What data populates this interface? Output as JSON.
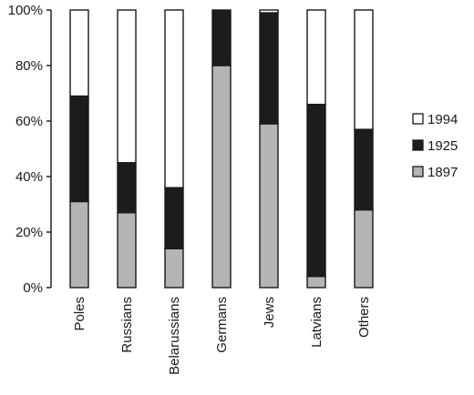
{
  "chart_data": {
    "type": "bar",
    "stacked": true,
    "categories": [
      "Poles",
      "Russians",
      "Belarussians",
      "Germans",
      "Jews",
      "Latvians",
      "Others"
    ],
    "series": [
      {
        "name": "1897",
        "color": "#b4b4b4",
        "values": [
          31,
          27,
          14,
          80,
          59,
          4,
          28
        ]
      },
      {
        "name": "1925",
        "color": "#1c1c1c",
        "values": [
          38,
          18,
          22,
          20,
          40,
          62,
          29
        ]
      },
      {
        "name": "1994",
        "color": "#ffffff",
        "values": [
          31,
          55,
          64,
          0,
          1,
          34,
          43
        ]
      }
    ],
    "y_ticks": [
      "0%",
      "20%",
      "40%",
      "60%",
      "80%",
      "100%"
    ],
    "ylim": [
      0,
      100
    ],
    "legend_position": "right",
    "legend_order": [
      "1994",
      "1925",
      "1897"
    ],
    "grid": false
  }
}
